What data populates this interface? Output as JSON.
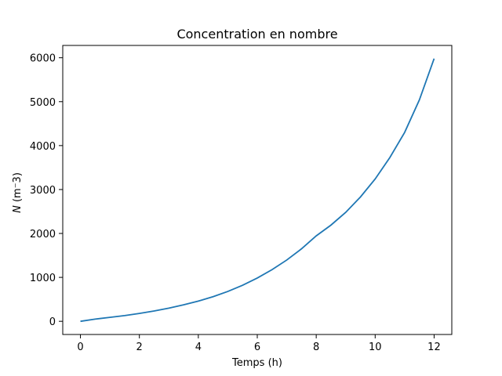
{
  "chart_data": {
    "type": "line",
    "title": "Concentration en nombre",
    "xlabel": "Temps (h)",
    "ylabel_italic": "N",
    "ylabel_rest": " (m⁻3)",
    "xlim": [
      -0.6,
      12.6
    ],
    "ylim": [
      -300,
      6280
    ],
    "xticks": [
      0,
      2,
      4,
      6,
      8,
      10,
      12
    ],
    "yticks": [
      0,
      1000,
      2000,
      3000,
      4000,
      5000,
      6000
    ],
    "grid": false,
    "series": [
      {
        "color": "#1f77b4",
        "x": [
          0,
          0.5,
          1,
          1.5,
          2,
          2.5,
          3,
          3.5,
          4,
          4.5,
          5,
          5.5,
          6,
          6.5,
          7,
          7.5,
          8,
          8.5,
          9,
          9.5,
          10,
          10.5,
          11,
          11.5,
          12
        ],
        "y": [
          0,
          50,
          90,
          130,
          180,
          235,
          300,
          375,
          460,
          560,
          680,
          820,
          985,
          1175,
          1395,
          1650,
          1945,
          2190,
          2480,
          2830,
          3240,
          3730,
          4300,
          5040,
          5980
        ]
      }
    ]
  }
}
